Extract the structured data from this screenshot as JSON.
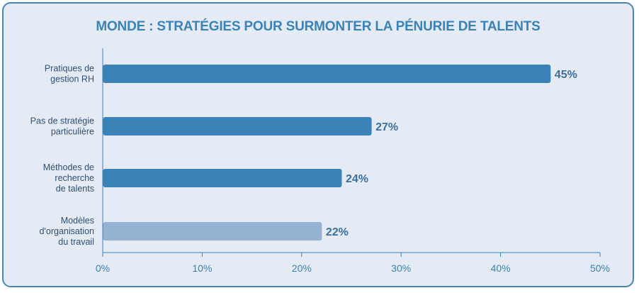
{
  "chart_data": {
    "type": "bar",
    "orientation": "horizontal",
    "title": "MONDE : STRATÉGIES POUR SURMONTER LA PÉNURIE DE TALENTS",
    "categories": [
      [
        "Pratiques de",
        "gestion RH"
      ],
      [
        "Pas de stratégie",
        "particulière"
      ],
      [
        "Méthodes de",
        "recherche",
        "de talents"
      ],
      [
        "Modèles",
        "d'organisation",
        "du travail"
      ]
    ],
    "values": [
      45,
      27,
      24,
      22
    ],
    "value_labels": [
      "45%",
      "27%",
      "24%",
      "22%"
    ],
    "bar_colors": [
      "#3a82b8",
      "#3a82b8",
      "#3a82b8",
      "#95b2d3"
    ],
    "xlim": [
      0,
      50
    ],
    "x_ticks": [
      0,
      10,
      20,
      30,
      40,
      50
    ],
    "x_tick_labels": [
      "0%",
      "10%",
      "20%",
      "30%",
      "40%",
      "50%"
    ],
    "xlabel": "",
    "ylabel": "",
    "grid": false,
    "legend": "none"
  }
}
